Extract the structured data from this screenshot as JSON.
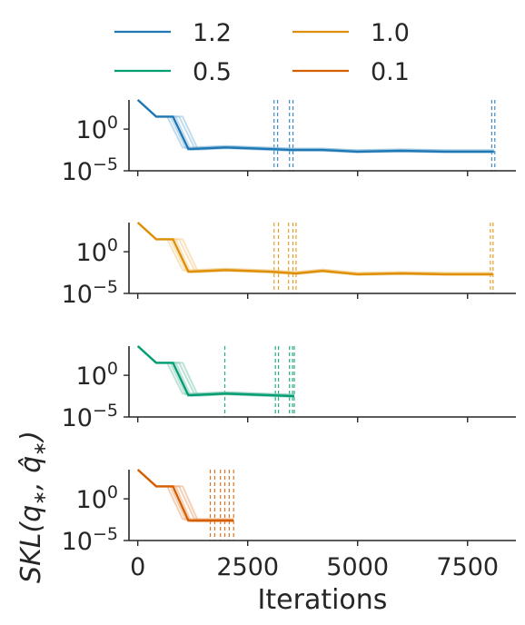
{
  "chart_data": {
    "type": "line",
    "xlabel": "Iterations",
    "ylabel": "SKL(q*, q̂*)",
    "ylabel_parts": {
      "a": "SKL(",
      "b": "q",
      "c": "∗",
      "d": ", ",
      "e": "q̂",
      "f": "∗",
      "g": ")"
    },
    "x_ticks": [
      {
        "value": 0,
        "label": "0"
      },
      {
        "value": 2500,
        "label": "2500"
      },
      {
        "value": 5000,
        "label": "5000"
      },
      {
        "value": 7500,
        "label": "7500"
      }
    ],
    "xlim": [
      -200,
      8600
    ],
    "y_scale": "log",
    "y_ticks": [
      {
        "exp": 0,
        "base": "10",
        "sup": "0"
      },
      {
        "exp": -5,
        "base": "10",
        "sup": "−5"
      }
    ],
    "ylim_log10": [
      -5,
      3.5
    ],
    "legend": {
      "placement": "top",
      "columns": 2
    },
    "series": [
      {
        "name": "1.2",
        "color": "#1f78b4",
        "shade": "#8fbfde",
        "run_ends": [
          3100,
          3180,
          3450,
          3530,
          8050,
          8120
        ],
        "path_log10": [
          [
            0,
            3.5
          ],
          [
            420,
            1.5
          ],
          [
            800,
            1.5
          ],
          [
            1150,
            -2.4
          ],
          [
            2000,
            -2.2
          ],
          [
            3000,
            -2.4
          ],
          [
            3500,
            -2.5
          ],
          [
            4200,
            -2.5
          ],
          [
            5000,
            -2.7
          ],
          [
            6000,
            -2.6
          ],
          [
            7000,
            -2.7
          ],
          [
            8100,
            -2.7
          ]
        ]
      },
      {
        "name": "1.0",
        "color": "#de8f05",
        "shade": "#f2cd8e",
        "run_ends": [
          3100,
          3200,
          3430,
          3530,
          3600,
          8020,
          8080
        ],
        "path_log10": [
          [
            0,
            3.5
          ],
          [
            420,
            1.5
          ],
          [
            800,
            1.5
          ],
          [
            1150,
            -2.4
          ],
          [
            2000,
            -2.2
          ],
          [
            3000,
            -2.4
          ],
          [
            3600,
            -2.6
          ],
          [
            4200,
            -2.3
          ],
          [
            5000,
            -2.7
          ],
          [
            6000,
            -2.6
          ],
          [
            7000,
            -2.7
          ],
          [
            8080,
            -2.7
          ]
        ]
      },
      {
        "name": "0.5",
        "color": "#029e73",
        "shade": "#87cbb6",
        "run_ends": [
          1980,
          3130,
          3200,
          3450,
          3520,
          3560
        ],
        "path_log10": [
          [
            0,
            3.5
          ],
          [
            420,
            1.5
          ],
          [
            800,
            1.5
          ],
          [
            1150,
            -2.4
          ],
          [
            2000,
            -2.2
          ],
          [
            3000,
            -2.4
          ],
          [
            3560,
            -2.5
          ]
        ]
      },
      {
        "name": "0.1",
        "color": "#d55e00",
        "shade": "#eba97a",
        "run_ends": [
          1650,
          1750,
          1880,
          1980,
          2080,
          2180
        ],
        "path_log10": [
          [
            0,
            3.5
          ],
          [
            420,
            1.5
          ],
          [
            800,
            1.5
          ],
          [
            1150,
            -2.6
          ],
          [
            2180,
            -2.6
          ]
        ]
      }
    ]
  }
}
